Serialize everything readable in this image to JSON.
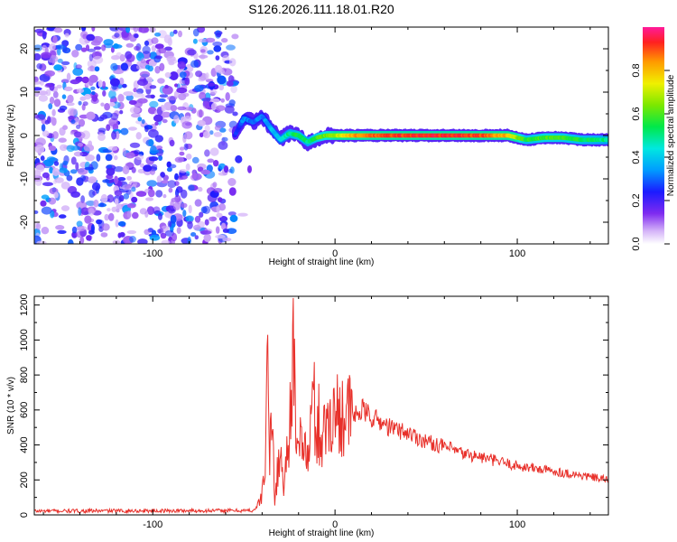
{
  "title": "S126.2026.111.18.01.R20",
  "colors": {
    "snr_line": "#e8302a",
    "axis": "#000000",
    "scatter_low": "#d9b8f5",
    "scatter_mid": "#9a5cf0",
    "scatter_high": "#6a14e6"
  },
  "chart_data": [
    {
      "type": "heatmap",
      "title": "",
      "xlabel": "Height of straight line (km)",
      "ylabel": "Frequency (Hz)",
      "xlim": [
        -165,
        150
      ],
      "ylim": [
        -25,
        25
      ],
      "xticks": [
        -100,
        0,
        100
      ],
      "xtick_labels": [
        "-100",
        "0",
        "100"
      ],
      "yticks": [
        -20,
        -10,
        0,
        10,
        20
      ],
      "ytick_labels": [
        "-20",
        "-10",
        "0",
        "10",
        "20"
      ],
      "colorbar": {
        "label": "Normalized spectral amplitude",
        "range": [
          0,
          1
        ],
        "ticks": [
          0.0,
          0.2,
          0.4,
          0.6,
          0.8
        ],
        "tick_labels": [
          "0.0",
          "0.2",
          "0.4",
          "0.6",
          "0.8"
        ]
      },
      "noise_region": {
        "x": [
          -165,
          -55
        ],
        "amplitude": [
          0.05,
          0.35
        ]
      },
      "signal_track": [
        {
          "x": -55,
          "freq": 0.0,
          "amp": 0.22
        },
        {
          "x": -50,
          "freq": 4.0,
          "amp": 0.35
        },
        {
          "x": -45,
          "freq": 3.0,
          "amp": 0.3
        },
        {
          "x": -40,
          "freq": 4.5,
          "amp": 0.32
        },
        {
          "x": -35,
          "freq": 1.5,
          "amp": 0.38
        },
        {
          "x": -30,
          "freq": -1.0,
          "amp": 0.42
        },
        {
          "x": -25,
          "freq": 0.5,
          "amp": 0.5
        },
        {
          "x": -20,
          "freq": 0.0,
          "amp": 0.55
        },
        {
          "x": -15,
          "freq": -1.5,
          "amp": 0.5
        },
        {
          "x": -10,
          "freq": -0.5,
          "amp": 0.58
        },
        {
          "x": -5,
          "freq": 0.0,
          "amp": 0.62
        },
        {
          "x": 0,
          "freq": 0.0,
          "amp": 0.68
        },
        {
          "x": 10,
          "freq": 0.0,
          "amp": 0.82
        },
        {
          "x": 20,
          "freq": 0.0,
          "amp": 0.88
        },
        {
          "x": 40,
          "freq": 0.0,
          "amp": 0.92
        },
        {
          "x": 60,
          "freq": 0.0,
          "amp": 0.93
        },
        {
          "x": 80,
          "freq": 0.0,
          "amp": 0.9
        },
        {
          "x": 95,
          "freq": 0.0,
          "amp": 0.8
        },
        {
          "x": 105,
          "freq": -1.0,
          "amp": 0.55
        },
        {
          "x": 115,
          "freq": -0.5,
          "amp": 0.6
        },
        {
          "x": 125,
          "freq": -0.5,
          "amp": 0.58
        },
        {
          "x": 135,
          "freq": -1.0,
          "amp": 0.55
        },
        {
          "x": 150,
          "freq": -1.0,
          "amp": 0.5
        }
      ]
    },
    {
      "type": "line",
      "title": "",
      "xlabel": "Height of straight line (km)",
      "ylabel": "SNR (10 * v/v)",
      "xlim": [
        -165,
        150
      ],
      "ylim": [
        0,
        1250
      ],
      "xticks": [
        -100,
        0,
        100
      ],
      "xtick_labels": [
        "-100",
        "0",
        "100"
      ],
      "yticks": [
        0,
        200,
        400,
        600,
        800,
        1000,
        1200
      ],
      "ytick_labels": [
        "0",
        "200",
        "400",
        "600",
        "800",
        "1000",
        "1200"
      ],
      "series": [
        {
          "name": "SNR",
          "anchors_x": [
            -165,
            -45,
            -42,
            -40,
            -38,
            -37,
            -36,
            -35,
            -34,
            -33,
            -32,
            -30,
            -28,
            -26,
            -24,
            -23,
            -22,
            -21,
            -20,
            -18,
            -15,
            -12,
            -10,
            -8,
            -5,
            -2,
            0,
            3,
            5,
            10,
            15,
            20,
            30,
            40,
            50,
            60,
            70,
            80,
            100,
            120,
            150
          ],
          "anchors_y": [
            22,
            25,
            60,
            120,
            320,
            1030,
            250,
            520,
            400,
            80,
            200,
            360,
            150,
            400,
            650,
            1240,
            600,
            300,
            350,
            500,
            280,
            700,
            450,
            420,
            500,
            600,
            560,
            600,
            590,
            560,
            600,
            560,
            500,
            470,
            420,
            390,
            350,
            330,
            280,
            250,
            200
          ],
          "spikes": [
            {
              "x": -37,
              "y": 1030
            },
            {
              "x": -23,
              "y": 1240
            },
            {
              "x": -9,
              "y": 750
            }
          ]
        }
      ]
    }
  ]
}
